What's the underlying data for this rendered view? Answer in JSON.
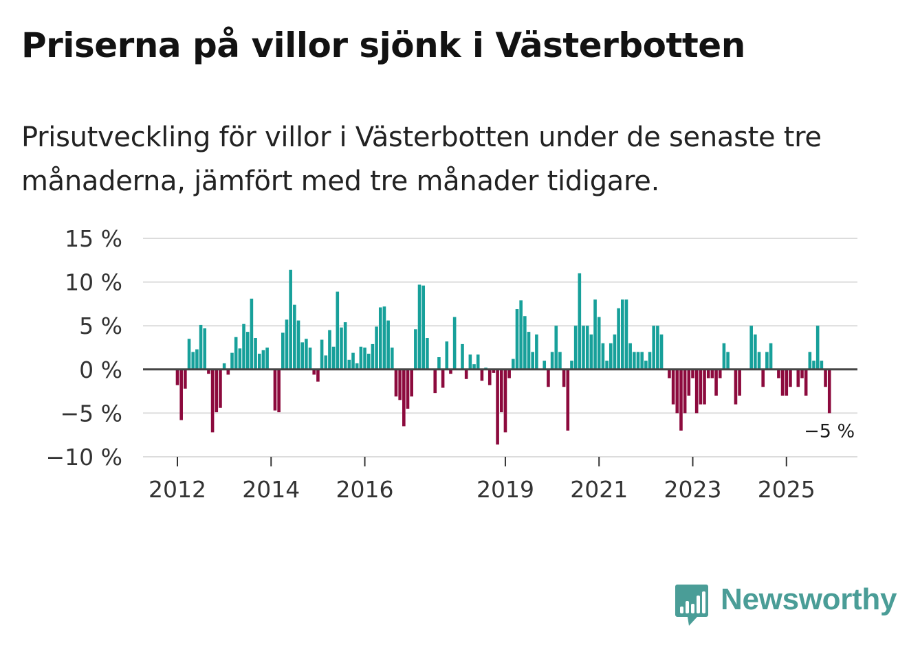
{
  "title": "Priserna på villor sjönk i Västerbotten",
  "subtitle": "Prisutveckling för villor i Västerbotten under de senaste tre månaderna, jämfört med tre månader tidigare.",
  "brand": {
    "name": "Newsworthy",
    "color": "#4a9d97",
    "icon": "bar-chart-speech-bubble-icon"
  },
  "colors": {
    "positive": "#17a09a",
    "negative": "#8c0a3d",
    "grid": "#dcdcdc",
    "zero_line": "#444444"
  },
  "chart_data": {
    "type": "bar",
    "title": "Priserna på villor sjönk i Västerbotten",
    "xlabel": "",
    "ylabel": "",
    "ylim": [
      -10,
      15
    ],
    "y_ticks": [
      15,
      10,
      5,
      0,
      -5,
      -10
    ],
    "y_tick_labels": [
      "15 %",
      "10 %",
      "5 %",
      "0 %",
      "−5 %",
      "−10 %"
    ],
    "x_ticks": [
      {
        "year": 2012,
        "label": "2012"
      },
      {
        "year": 2014,
        "label": "2014"
      },
      {
        "year": 2016,
        "label": "2016"
      },
      {
        "year": 2019,
        "label": "2019"
      },
      {
        "year": 2021,
        "label": "2021"
      },
      {
        "year": 2023,
        "label": "2023"
      },
      {
        "year": 2025,
        "label": "2025"
      }
    ],
    "x_start": "2012-01",
    "frequency": "monthly",
    "end_label": "−5 %",
    "grid": true,
    "series": [
      {
        "name": "Prisutveckling",
        "start": "2012-01",
        "values": [
          -1.8,
          -5.8,
          -2.2,
          3.5,
          2.0,
          2.3,
          5.1,
          4.7,
          -0.5,
          -7.2,
          -4.9,
          -4.4,
          0.7,
          -0.6,
          1.9,
          3.7,
          2.4,
          5.2,
          4.3,
          8.1,
          3.6,
          1.8,
          2.2,
          2.5,
          0.1,
          -4.7,
          -4.9,
          4.2,
          5.7,
          11.4,
          7.4,
          5.6,
          3.1,
          3.5,
          2.5,
          -0.6,
          -1.4,
          3.4,
          1.6,
          4.5,
          2.6,
          8.9,
          4.8,
          5.4,
          1.1,
          1.9,
          0.7,
          2.6,
          2.5,
          1.8,
          2.9,
          4.9,
          7.1,
          7.2,
          5.6,
          2.5,
          -3.1,
          -3.5,
          -6.5,
          -4.5,
          -3.1,
          4.6,
          9.7,
          9.6,
          3.6,
          0.1,
          -2.7,
          1.4,
          -2.1,
          3.2,
          -0.5,
          6.0,
          0.1,
          2.9,
          -1.1,
          1.7,
          0.6,
          1.7,
          -1.3,
          0.2,
          -1.8,
          -0.4,
          -8.6,
          -4.9,
          -7.2,
          -1.0,
          1.2,
          6.9,
          7.9,
          6.1,
          4.3,
          2.0,
          4.0,
          0.1,
          1.0,
          -2.0,
          2.0,
          5.0,
          2.0,
          -2.0,
          -7.0,
          1.0,
          5.0,
          11.0,
          5.0,
          5.0,
          4.0,
          8.0,
          6.0,
          3.0,
          1.0,
          3.0,
          4.0,
          7.0,
          8.0,
          8.0,
          3.0,
          2.0,
          2.0,
          2.0,
          1.0,
          2.0,
          5.0,
          5.0,
          4.0,
          0.1,
          -1.0,
          -4.0,
          -5.0,
          -7.0,
          -5.0,
          -3.0,
          -1.0,
          -5.0,
          -4.0,
          -4.0,
          -1.0,
          -1.0,
          -3.0,
          -1.0,
          3.0,
          2.0,
          0.1,
          -4.0,
          -3.0,
          0.1,
          0.1,
          5.0,
          4.0,
          2.0,
          -2.0,
          2.0,
          3.0,
          0.1,
          -1.0,
          -3.0,
          -3.0,
          -2.0,
          0.1,
          -2.0,
          -1.0,
          -3.0,
          2.0,
          1.0,
          5.0,
          1.0,
          -2.0,
          -5.0
        ]
      }
    ]
  }
}
